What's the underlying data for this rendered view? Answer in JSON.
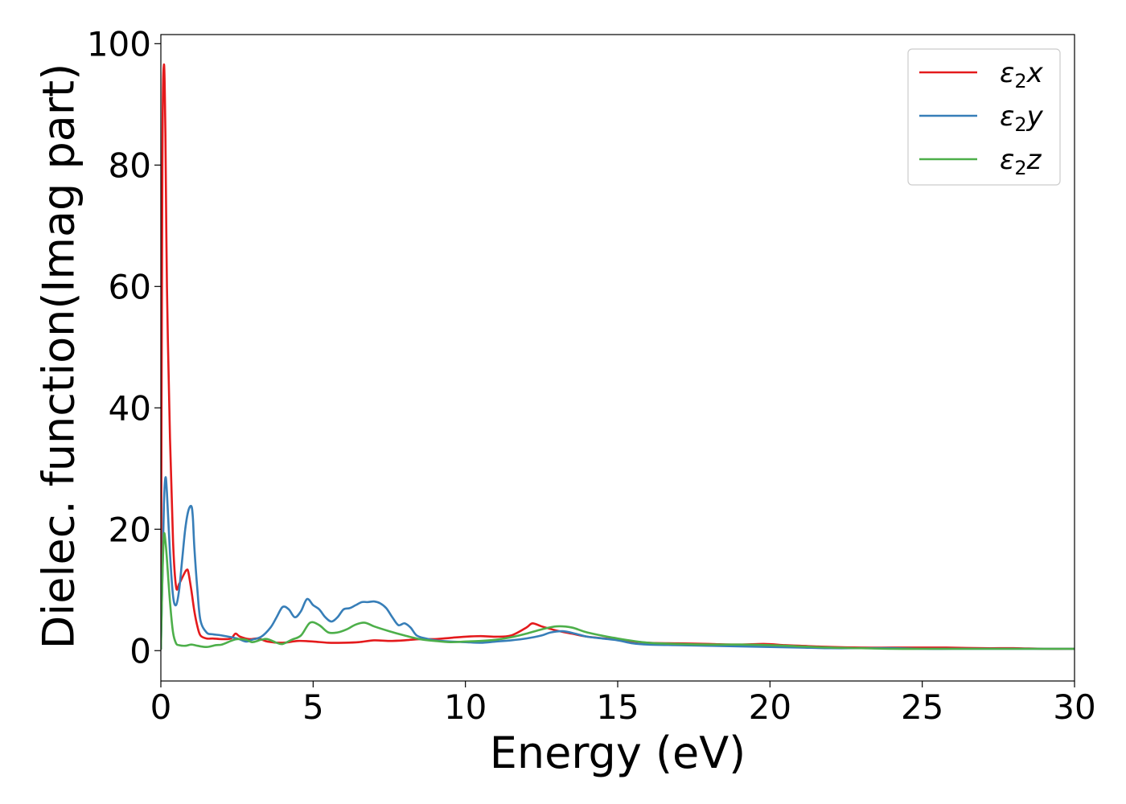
{
  "chart_data": {
    "type": "line",
    "xlabel": "Energy (eV)",
    "ylabel": "Dielec. function(Imag part)",
    "xlim": [
      0,
      30
    ],
    "ylim": [
      -5,
      101.5
    ],
    "xticks": [
      0,
      5,
      10,
      15,
      20,
      25,
      30
    ],
    "yticks": [
      0,
      20,
      40,
      60,
      80,
      100
    ],
    "grid": false,
    "legend_position": "top-right",
    "series": [
      {
        "name": "ε2x",
        "legend_base": "ε",
        "legend_sub": "2",
        "legend_suffix": "x",
        "color": "#e41a1c",
        "x": [
          0,
          0.05,
          0.1,
          0.15,
          0.2,
          0.3,
          0.4,
          0.5,
          0.6,
          0.7,
          0.8,
          0.85,
          0.9,
          1.0,
          1.1,
          1.2,
          1.3,
          1.5,
          1.7,
          2.0,
          2.3,
          2.45,
          2.6,
          2.9,
          3.2,
          3.5,
          4.0,
          4.5,
          5.0,
          5.5,
          6.0,
          6.5,
          7.0,
          7.5,
          8.0,
          8.5,
          9.0,
          9.5,
          10.0,
          10.5,
          11.0,
          11.5,
          12.0,
          12.2,
          12.5,
          13.0,
          13.5,
          14.0,
          15.0,
          16.0,
          17.0,
          18.0,
          19.0,
          19.8,
          20.5,
          21.0,
          22.0,
          23.0,
          24.0,
          25.0,
          25.8,
          27.0,
          28.0,
          29.0,
          30.0
        ],
        "y": [
          0.3,
          80,
          96.5,
          85,
          60,
          35,
          18,
          10.5,
          11,
          12,
          13,
          13.3,
          13.0,
          10,
          6.5,
          4,
          2.5,
          2.0,
          2.0,
          1.9,
          2.0,
          2.8,
          2.3,
          1.9,
          2.0,
          1.5,
          1.3,
          1.6,
          1.5,
          1.3,
          1.3,
          1.4,
          1.7,
          1.6,
          1.7,
          1.9,
          1.9,
          2.1,
          2.3,
          2.4,
          2.3,
          2.5,
          3.8,
          4.5,
          4.0,
          3.3,
          2.8,
          2.3,
          1.8,
          1.3,
          1.2,
          1.1,
          1.0,
          1.1,
          0.9,
          0.8,
          0.6,
          0.5,
          0.5,
          0.5,
          0.5,
          0.4,
          0.4,
          0.3,
          0.3
        ]
      },
      {
        "name": "ε2y",
        "legend_base": "ε",
        "legend_sub": "2",
        "legend_suffix": "y",
        "color": "#377eb8",
        "x": [
          0,
          0.05,
          0.1,
          0.15,
          0.2,
          0.3,
          0.4,
          0.5,
          0.6,
          0.7,
          0.8,
          0.9,
          1.0,
          1.05,
          1.1,
          1.2,
          1.3,
          1.5,
          1.7,
          2.0,
          2.5,
          2.8,
          3.0,
          3.3,
          3.6,
          3.8,
          4.0,
          4.2,
          4.4,
          4.6,
          4.8,
          5.0,
          5.2,
          5.4,
          5.6,
          5.8,
          6.0,
          6.2,
          6.4,
          6.6,
          6.8,
          7.0,
          7.2,
          7.4,
          7.6,
          7.8,
          8.0,
          8.2,
          8.4,
          8.7,
          9.0,
          9.5,
          10.0,
          10.5,
          11.0,
          11.5,
          12.0,
          12.5,
          12.8,
          13.2,
          13.6,
          14.0,
          14.5,
          15.0,
          15.5,
          16.0,
          17.0,
          18.0,
          19.0,
          20.0,
          21.0,
          22.0,
          23.0,
          24.0,
          25.0,
          26.0,
          27.0,
          28.0,
          29.0,
          30.0
        ],
        "y": [
          0.3,
          12,
          24,
          28.5,
          26,
          16,
          9,
          7.5,
          10,
          15,
          20,
          23,
          23.8,
          22,
          17,
          10,
          5,
          3,
          2.7,
          2.5,
          2.0,
          1.5,
          1.8,
          2.3,
          3.8,
          5.5,
          7.2,
          6.8,
          5.5,
          6.5,
          8.5,
          7.5,
          6.8,
          5.5,
          4.8,
          5.5,
          6.8,
          7.0,
          7.5,
          8.0,
          8.0,
          8.1,
          7.8,
          7.0,
          5.5,
          4.2,
          4.5,
          3.8,
          2.5,
          2.0,
          1.7,
          1.5,
          1.4,
          1.3,
          1.5,
          1.7,
          2.0,
          2.5,
          3.0,
          3.2,
          2.8,
          2.3,
          2.0,
          1.7,
          1.2,
          1.0,
          0.9,
          0.8,
          0.7,
          0.6,
          0.5,
          0.4,
          0.4,
          0.4,
          0.3,
          0.3,
          0.3,
          0.3,
          0.3,
          0.3
        ]
      },
      {
        "name": "ε2z",
        "legend_base": "ε",
        "legend_sub": "2",
        "legend_suffix": "z",
        "color": "#4daf4a",
        "x": [
          0,
          0.05,
          0.1,
          0.15,
          0.2,
          0.3,
          0.4,
          0.5,
          0.6,
          0.8,
          1.0,
          1.2,
          1.5,
          1.8,
          2.0,
          2.3,
          2.5,
          2.8,
          3.0,
          3.3,
          3.5,
          3.8,
          4.0,
          4.3,
          4.6,
          4.9,
          5.2,
          5.5,
          5.8,
          6.1,
          6.4,
          6.7,
          7.0,
          7.5,
          8.0,
          8.5,
          9.0,
          9.5,
          10.0,
          10.5,
          11.0,
          11.5,
          12.0,
          12.5,
          13.0,
          13.5,
          14.0,
          15.0,
          16.0,
          17.0,
          18.0,
          19.0,
          20.0,
          21.0,
          22.0,
          23.0,
          24.0,
          25.0,
          26.0,
          27.0,
          28.0,
          29.0,
          30.0
        ],
        "y": [
          0.3,
          12,
          19,
          18,
          15,
          8,
          3,
          1.2,
          0.9,
          0.8,
          1.0,
          0.8,
          0.6,
          0.9,
          1.0,
          1.6,
          1.9,
          1.8,
          1.4,
          1.8,
          1.9,
          1.3,
          1.1,
          1.8,
          2.5,
          4.6,
          4.2,
          3.0,
          3.0,
          3.5,
          4.3,
          4.6,
          4.0,
          3.2,
          2.5,
          1.9,
          1.6,
          1.4,
          1.5,
          1.6,
          1.8,
          2.2,
          2.8,
          3.5,
          4.0,
          3.8,
          3.0,
          2.0,
          1.3,
          1.1,
          1.0,
          1.0,
          0.9,
          0.7,
          0.5,
          0.4,
          0.3,
          0.3,
          0.3,
          0.3,
          0.3,
          0.3,
          0.3
        ]
      }
    ]
  }
}
